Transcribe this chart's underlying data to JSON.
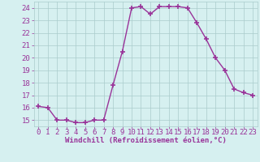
{
  "x": [
    0,
    1,
    2,
    3,
    4,
    5,
    6,
    7,
    8,
    9,
    10,
    11,
    12,
    13,
    14,
    15,
    16,
    17,
    18,
    19,
    20,
    21,
    22,
    23
  ],
  "y": [
    16.1,
    16.0,
    15.0,
    15.0,
    14.8,
    14.8,
    15.0,
    15.0,
    17.8,
    20.5,
    24.0,
    24.1,
    23.5,
    24.1,
    24.1,
    24.1,
    24.0,
    22.8,
    21.5,
    20.0,
    19.0,
    17.5,
    17.2,
    17.0
  ],
  "line_color": "#993399",
  "marker": "+",
  "markersize": 4,
  "linewidth": 1.0,
  "xlabel": "Windchill (Refroidissement éolien,°C)",
  "xlabel_fontsize": 6.5,
  "ylabel_ticks": [
    15,
    16,
    17,
    18,
    19,
    20,
    21,
    22,
    23,
    24
  ],
  "xtick_labels": [
    "0",
    "1",
    "2",
    "3",
    "4",
    "5",
    "6",
    "7",
    "8",
    "9",
    "10",
    "11",
    "12",
    "13",
    "14",
    "15",
    "16",
    "17",
    "18",
    "19",
    "20",
    "21",
    "22",
    "23"
  ],
  "xlim": [
    -0.5,
    23.5
  ],
  "ylim": [
    14.5,
    24.5
  ],
  "bg_color": "#d6f0f0",
  "grid_color": "#aacccc",
  "tick_fontsize": 6.5
}
